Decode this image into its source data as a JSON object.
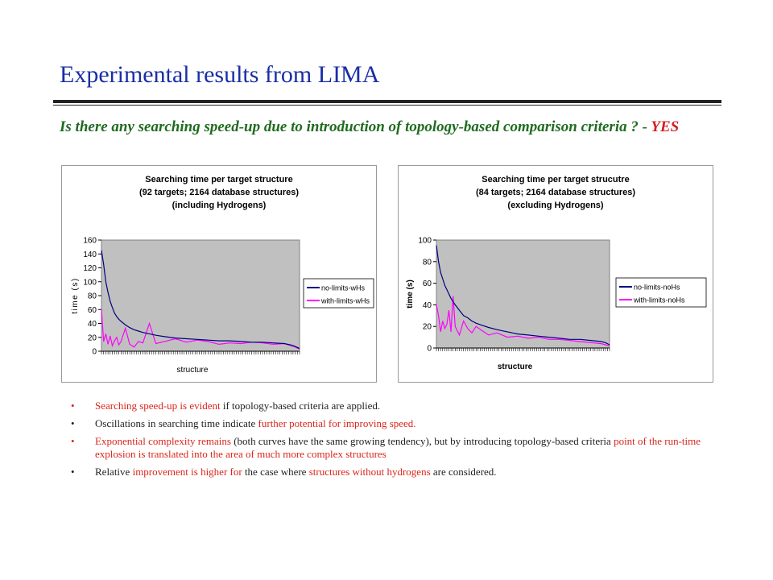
{
  "slide": {
    "title": "Experimental results from LIMA",
    "question": "Is there any searching speed-up due to introduction of topology-based comparison criteria ? - ",
    "answer": "YES"
  },
  "bullets": [
    {
      "bullet": "•",
      "segments": [
        {
          "text": "Searching speed-up is evident ",
          "color": "red"
        },
        {
          "text": "if topology-based criteria are applied.",
          "color": "black"
        }
      ]
    },
    {
      "bullet": "•",
      "segments": [
        {
          "text": "Oscillations in searching time indicate ",
          "color": "black"
        },
        {
          "text": "further potential for improving speed.",
          "color": "red"
        }
      ]
    },
    {
      "bullet": "•",
      "segments": [
        {
          "text": "Exponential complexity remains ",
          "color": "red"
        },
        {
          "text": "(both curves have the same growing tendency), but by introducing topology-based criteria ",
          "color": "black"
        },
        {
          "text": "point of the run-time explosion is translated into the area of much more complex structures",
          "color": "red"
        }
      ]
    },
    {
      "bullet": "•",
      "segments": [
        {
          "text": "Relative ",
          "color": "black"
        },
        {
          "text": "improvement is higher for ",
          "color": "red"
        },
        {
          "text": "the case where ",
          "color": "black"
        },
        {
          "text": "structures without hydrogens ",
          "color": "red"
        },
        {
          "text": "are considered.",
          "color": "black"
        }
      ]
    }
  ],
  "colors": {
    "title": "#1a2ea6",
    "question": "#1f6b1f",
    "answer": "#d21f1f",
    "highlight": "#d9261c",
    "plot_bg": "#c0c0c0",
    "series1": "#00007f",
    "series2": "#ff00ff"
  },
  "chart_data": [
    {
      "type": "line",
      "title": [
        "Searching time per target structure",
        "(92 targets; 2164 database structures)",
        "(including Hydrogens)"
      ],
      "xlabel": "structure",
      "ylabel": "time (s)",
      "ylim": [
        0,
        160
      ],
      "yticks": [
        "0",
        "20",
        "40",
        "60",
        "80",
        "100",
        "120",
        "140",
        "160"
      ],
      "x": [
        1,
        2,
        3,
        4,
        5,
        6,
        7,
        8,
        9,
        10,
        12,
        14,
        16,
        18,
        20,
        23,
        26,
        30,
        35,
        40,
        45,
        50,
        55,
        60,
        65,
        70,
        75,
        80,
        85,
        88,
        90,
        92
      ],
      "series": [
        {
          "name": "no-limits-wHs",
          "color": "#00007f",
          "values": [
            145,
            125,
            100,
            85,
            72,
            63,
            55,
            50,
            46,
            43,
            38,
            34,
            31,
            29,
            27,
            25,
            23,
            21,
            19,
            18,
            17,
            16,
            15,
            15,
            14,
            13,
            13,
            12,
            11,
            9,
            7,
            4
          ]
        },
        {
          "name": "with-limits-wHs",
          "color": "#ff00ff",
          "values": [
            60,
            14,
            25,
            10,
            22,
            8,
            15,
            20,
            9,
            14,
            33,
            10,
            6,
            14,
            12,
            40,
            11,
            14,
            18,
            13,
            16,
            14,
            10,
            12,
            11,
            13,
            12,
            10,
            11,
            8,
            6,
            3
          ]
        }
      ]
    },
    {
      "type": "line",
      "title": [
        "Searching time per target strucutre",
        "(84 targets; 2164 database structures)",
        "(excluding Hydrogens)"
      ],
      "xlabel": "structure",
      "ylabel": "time (s)",
      "ylim": [
        0,
        100
      ],
      "yticks": [
        "0",
        "20",
        "40",
        "60",
        "80",
        "100"
      ],
      "x": [
        1,
        2,
        3,
        4,
        5,
        6,
        7,
        8,
        9,
        10,
        12,
        14,
        16,
        18,
        20,
        23,
        26,
        30,
        35,
        40,
        45,
        50,
        55,
        60,
        65,
        70,
        75,
        80,
        82,
        84
      ],
      "series": [
        {
          "name": "no-limits-noHs",
          "color": "#00007f",
          "values": [
            95,
            80,
            70,
            64,
            58,
            54,
            50,
            46,
            43,
            40,
            35,
            30,
            28,
            25,
            23,
            21,
            19,
            17,
            15,
            13,
            12,
            11,
            10,
            9,
            8,
            8,
            7,
            6,
            5,
            3
          ]
        },
        {
          "name": "with-limits-noHs",
          "color": "#ff00ff",
          "values": [
            40,
            30,
            15,
            25,
            18,
            22,
            35,
            15,
            48,
            20,
            12,
            25,
            18,
            14,
            20,
            16,
            12,
            14,
            10,
            11,
            9,
            10,
            8,
            8,
            7,
            6,
            5,
            4,
            3,
            2
          ]
        }
      ]
    }
  ]
}
